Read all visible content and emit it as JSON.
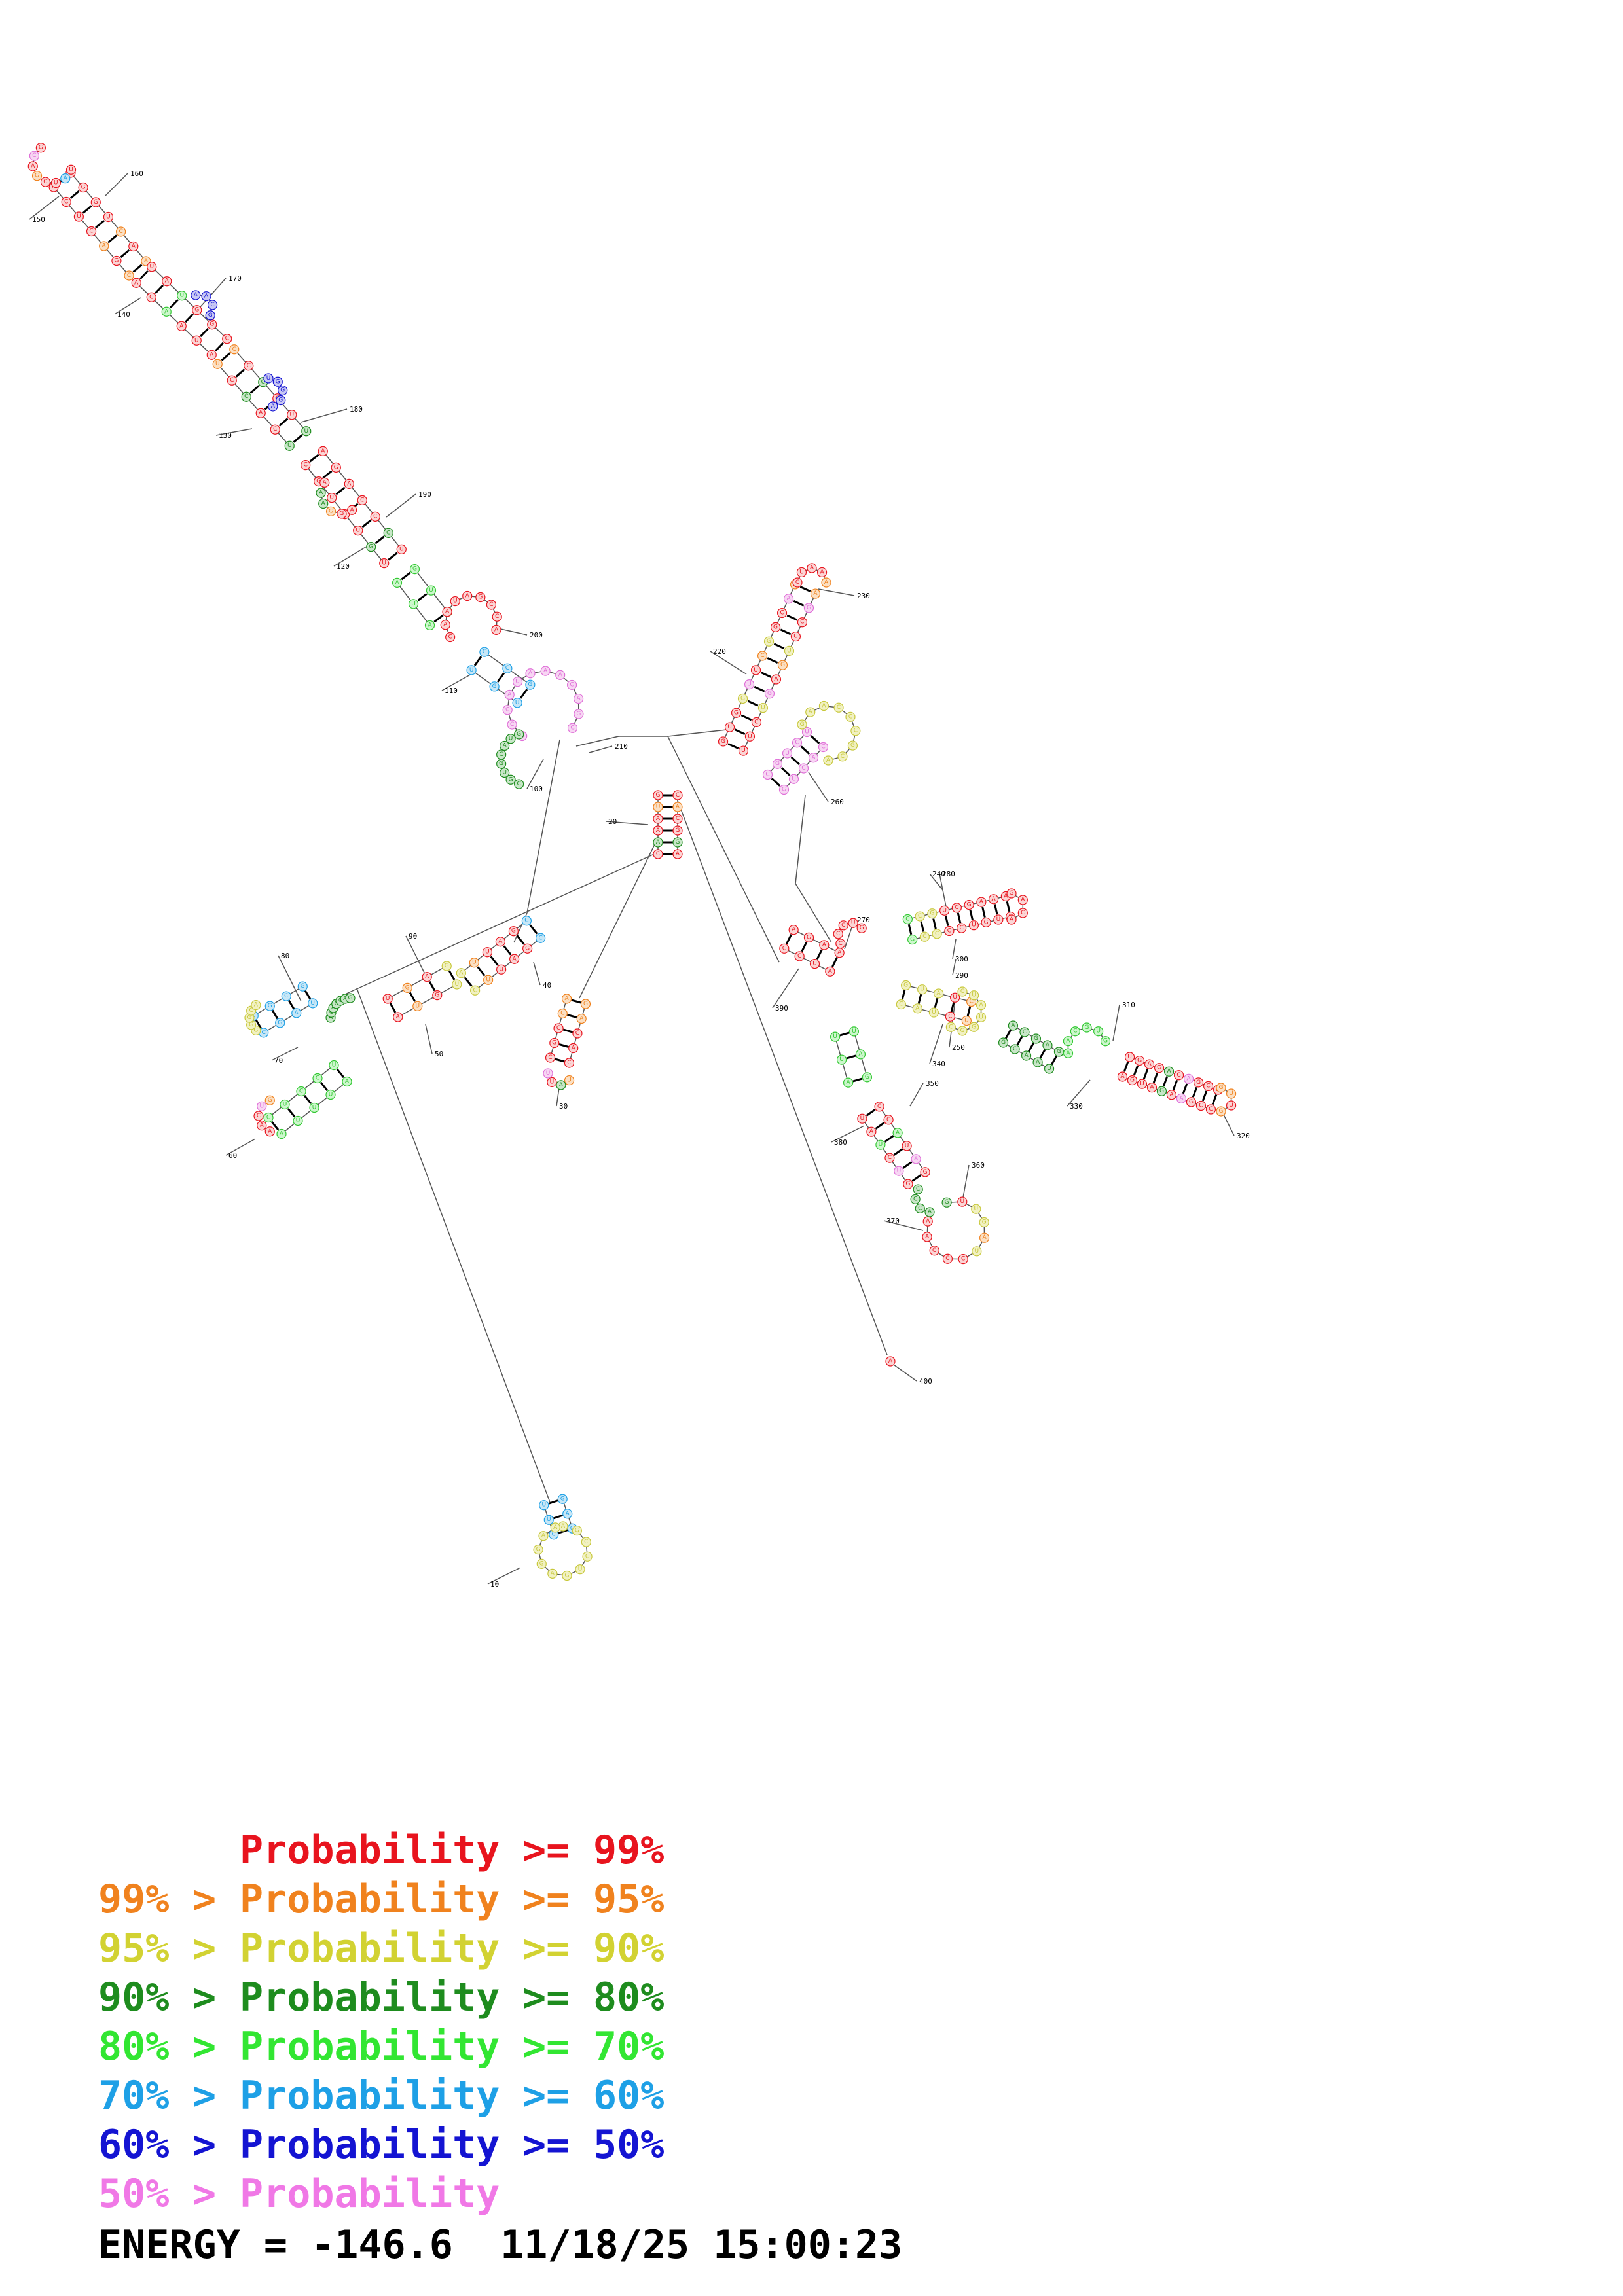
{
  "legend": [
    {
      "lower": "",
      "sep": "",
      "word": "Probability",
      "op": ">=",
      "upper": "99%",
      "color": "#e8141e"
    },
    {
      "lower": "99%",
      "sep": ">",
      "word": "Probability",
      "op": ">=",
      "upper": "95%",
      "color": "#f0821e"
    },
    {
      "lower": "95%",
      "sep": ">",
      "word": "Probability",
      "op": ">=",
      "upper": "90%",
      "color": "#d2d232"
    },
    {
      "lower": "90%",
      "sep": ">",
      "word": "Probability",
      "op": ">=",
      "upper": "80%",
      "color": "#1e8c1e"
    },
    {
      "lower": "80%",
      "sep": ">",
      "word": "Probability",
      "op": ">=",
      "upper": "70%",
      "color": "#32e632"
    },
    {
      "lower": "70%",
      "sep": ">",
      "word": "Probability",
      "op": ">=",
      "upper": "60%",
      "color": "#1ea0e6"
    },
    {
      "lower": "60%",
      "sep": ">",
      "word": "Probability",
      "op": ">=",
      "upper": "50%",
      "color": "#1414d2"
    },
    {
      "lower": "50%",
      "sep": ">",
      "word": "Probability",
      "op": "",
      "upper": "",
      "color": "#f078e6"
    }
  ],
  "energy": {
    "label": "ENERGY =",
    "value": "-146.6",
    "date": "11/18/25",
    "time": "15:00:23"
  },
  "position_labels": [
    "10",
    "20",
    "30",
    "40",
    "50",
    "60",
    "70",
    "80",
    "90",
    "100",
    "110",
    "120",
    "130",
    "140",
    "150",
    "160",
    "170",
    "180",
    "190",
    "200",
    "210",
    "220",
    "230",
    "240",
    "250",
    "260",
    "270",
    "280",
    "290",
    "300",
    "310",
    "320",
    "330",
    "340",
    "350",
    "360",
    "370",
    "380",
    "390",
    "400"
  ],
  "bins": [
    "red",
    "orange",
    "yellow",
    "darkgreen",
    "green",
    "cyan",
    "blue",
    "pink"
  ],
  "bin_fills": {
    "red": "#fbd5d5",
    "orange": "#fbe0c4",
    "yellow": "#f1f1c2",
    "darkgreen": "#c8e6c8",
    "green": "#cdf7cd",
    "cyan": "#c7e7f7",
    "blue": "#c8c8f4",
    "pink": "#f7d6f3"
  },
  "bin_strokes": {
    "red": "#e8141e",
    "orange": "#f0821e",
    "yellow": "#c8c83c",
    "darkgreen": "#1e8c1e",
    "green": "#32c832",
    "cyan": "#1ea0e6",
    "blue": "#1414d2",
    "pink": "#e070d8"
  }
}
